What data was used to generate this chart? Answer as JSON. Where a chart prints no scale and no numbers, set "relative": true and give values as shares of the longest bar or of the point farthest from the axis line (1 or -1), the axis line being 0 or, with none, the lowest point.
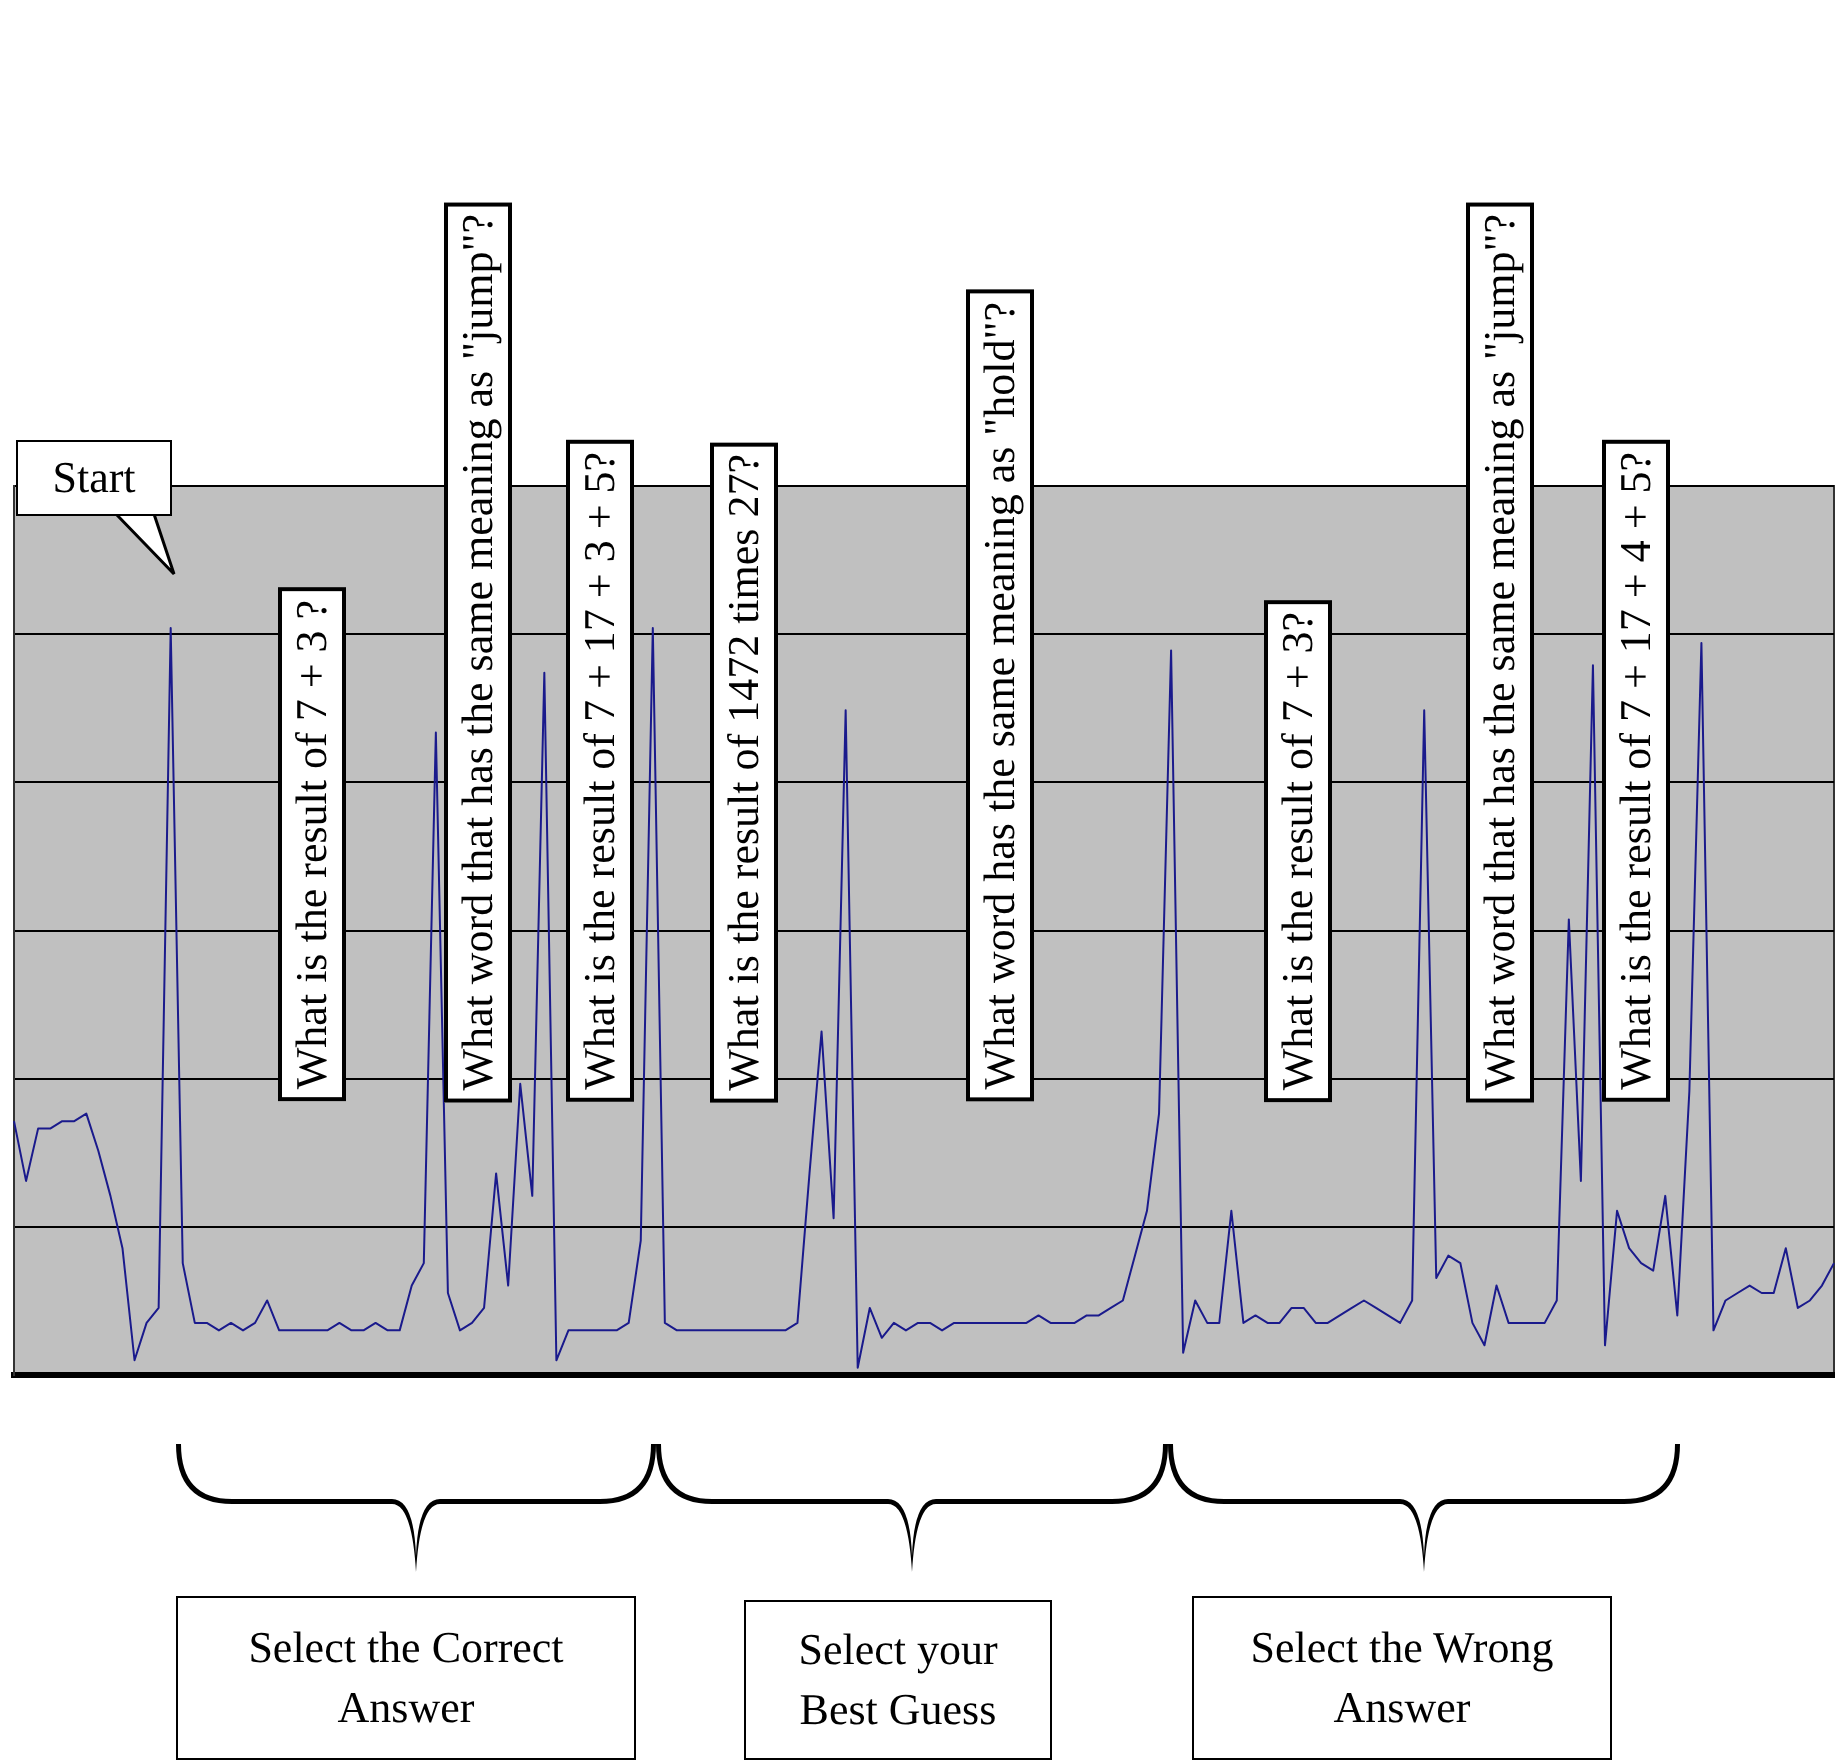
{
  "chart_data": {
    "type": "line",
    "relative": true,
    "grid": "y",
    "legend": false,
    "marker": "none",
    "line_style": "solid",
    "categories": [
      null,
      null,
      null,
      null,
      null,
      null,
      null,
      null,
      null,
      null,
      null,
      null,
      null,
      null,
      null,
      null,
      null,
      null,
      null,
      null,
      null,
      null,
      null,
      null,
      null,
      null,
      null,
      null,
      null,
      null,
      null,
      null,
      null,
      null,
      null,
      null,
      null,
      null,
      null,
      null,
      null,
      null,
      null,
      null,
      null,
      null,
      null,
      null,
      null,
      null,
      null,
      null,
      null,
      null,
      null,
      null,
      null,
      null,
      null,
      null,
      null,
      null,
      null,
      null,
      null,
      null,
      null,
      null,
      null,
      null,
      null,
      null,
      null,
      null,
      null,
      null,
      null,
      null,
      null,
      null,
      null,
      null,
      null,
      null,
      null,
      null,
      null,
      null,
      null,
      null,
      null,
      null,
      null,
      null,
      null,
      null,
      null,
      null,
      null,
      null,
      null,
      null,
      null,
      null,
      null,
      null,
      null,
      null,
      null,
      null,
      null,
      null,
      null,
      null,
      null,
      null,
      null,
      null,
      null,
      null,
      null,
      null,
      null,
      null,
      null,
      null,
      null,
      null,
      null,
      null,
      null,
      null,
      null,
      null,
      null,
      null,
      null,
      null,
      null,
      null,
      null,
      null,
      null,
      null,
      null,
      null,
      null,
      null,
      null,
      null,
      null,
      null
    ],
    "series": [
      {
        "color": "#1a1a8c",
        "values": [
          0.34,
          0.26,
          0.33,
          0.33,
          0.34,
          0.34,
          0.35,
          0.3,
          0.24,
          0.17,
          0.02,
          0.07,
          0.09,
          1.0,
          0.15,
          0.07,
          0.07,
          0.06,
          0.07,
          0.06,
          0.07,
          0.1,
          0.06,
          0.06,
          0.06,
          0.06,
          0.06,
          0.07,
          0.06,
          0.06,
          0.07,
          0.06,
          0.06,
          0.12,
          0.15,
          0.86,
          0.11,
          0.06,
          0.07,
          0.09,
          0.27,
          0.12,
          0.39,
          0.24,
          0.94,
          0.02,
          0.06,
          0.06,
          0.06,
          0.06,
          0.06,
          0.07,
          0.18,
          1.0,
          0.07,
          0.06,
          0.06,
          0.06,
          0.06,
          0.06,
          0.06,
          0.06,
          0.06,
          0.06,
          0.06,
          0.07,
          0.27,
          0.46,
          0.21,
          0.89,
          0.01,
          0.09,
          0.05,
          0.07,
          0.06,
          0.07,
          0.07,
          0.06,
          0.07,
          0.07,
          0.07,
          0.07,
          0.07,
          0.07,
          0.07,
          0.08,
          0.07,
          0.07,
          0.07,
          0.08,
          0.08,
          0.09,
          0.1,
          0.16,
          0.22,
          0.35,
          0.97,
          0.03,
          0.1,
          0.07,
          0.07,
          0.22,
          0.07,
          0.08,
          0.07,
          0.07,
          0.09,
          0.09,
          0.07,
          0.07,
          0.08,
          0.09,
          0.1,
          0.09,
          0.08,
          0.07,
          0.1,
          0.89,
          0.13,
          0.16,
          0.15,
          0.07,
          0.04,
          0.12,
          0.07,
          0.07,
          0.07,
          0.07,
          0.1,
          0.61,
          0.26,
          0.95,
          0.04,
          0.22,
          0.17,
          0.15,
          0.14,
          0.24,
          0.08,
          0.38,
          0.98,
          0.06,
          0.1,
          0.11,
          0.12,
          0.11,
          0.11,
          0.17,
          0.09,
          0.1,
          0.12,
          0.15
        ]
      }
    ],
    "annotations": [
      "Start",
      "What is the result of 7 + 3 ?",
      "What word that has the same meaning as \"jump\"?",
      "What is the result of 7 + 17 + 3 + 5?",
      "What is the result of 1472 times 27?",
      "What word has the same meaning as \"hold\"?",
      "What is the result of 7 + 3?",
      "What word that has the same meaning as \"jump\"?",
      "What is the result of 7 + 17 + 4 + 5?",
      "Select the Correct Answer",
      "Select your Best Guess",
      "Select the Wrong Answer"
    ]
  }
}
